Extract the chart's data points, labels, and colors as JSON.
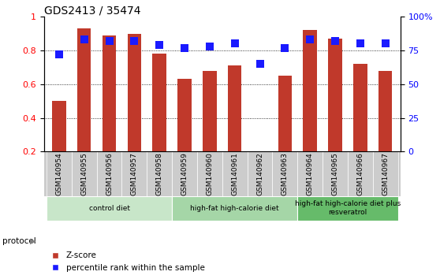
{
  "title": "GDS2413 / 35474",
  "samples": [
    "GSM140954",
    "GSM140955",
    "GSM140956",
    "GSM140957",
    "GSM140958",
    "GSM140959",
    "GSM140960",
    "GSM140961",
    "GSM140962",
    "GSM140963",
    "GSM140964",
    "GSM140965",
    "GSM140966",
    "GSM140967"
  ],
  "zscore": [
    0.5,
    0.93,
    0.89,
    0.9,
    0.78,
    0.63,
    0.68,
    0.71,
    0.2,
    0.65,
    0.92,
    0.87,
    0.72,
    0.68
  ],
  "percentile": [
    72,
    83,
    82,
    82,
    79,
    77,
    78,
    80,
    65,
    77,
    83,
    82,
    80,
    80
  ],
  "bar_color": "#c0392b",
  "dot_color": "#1a1aff",
  "ylim_left": [
    0.2,
    1.0
  ],
  "ylim_right": [
    0,
    100
  ],
  "yticks_left": [
    0.2,
    0.4,
    0.6,
    0.8,
    1.0
  ],
  "yticks_right": [
    0,
    25,
    50,
    75,
    100
  ],
  "ytick_labels_right": [
    "0",
    "25",
    "50",
    "75",
    "100%"
  ],
  "ytick_labels_left": [
    "0.2",
    "0.4",
    "0.6",
    "0.8",
    "1"
  ],
  "groups": [
    {
      "label": "control diet",
      "start": 0,
      "end": 4,
      "color": "#c8e6c9"
    },
    {
      "label": "high-fat high-calorie diet",
      "start": 5,
      "end": 9,
      "color": "#a5d6a7"
    },
    {
      "label": "high-fat high-calorie diet plus\nresveratrol",
      "start": 10,
      "end": 13,
      "color": "#66bb6a"
    }
  ],
  "bar_width": 0.55,
  "dot_size": 55,
  "sample_bg": "#cccccc",
  "legend_zscore": "Z-score",
  "legend_percentile": "percentile rank within the sample"
}
